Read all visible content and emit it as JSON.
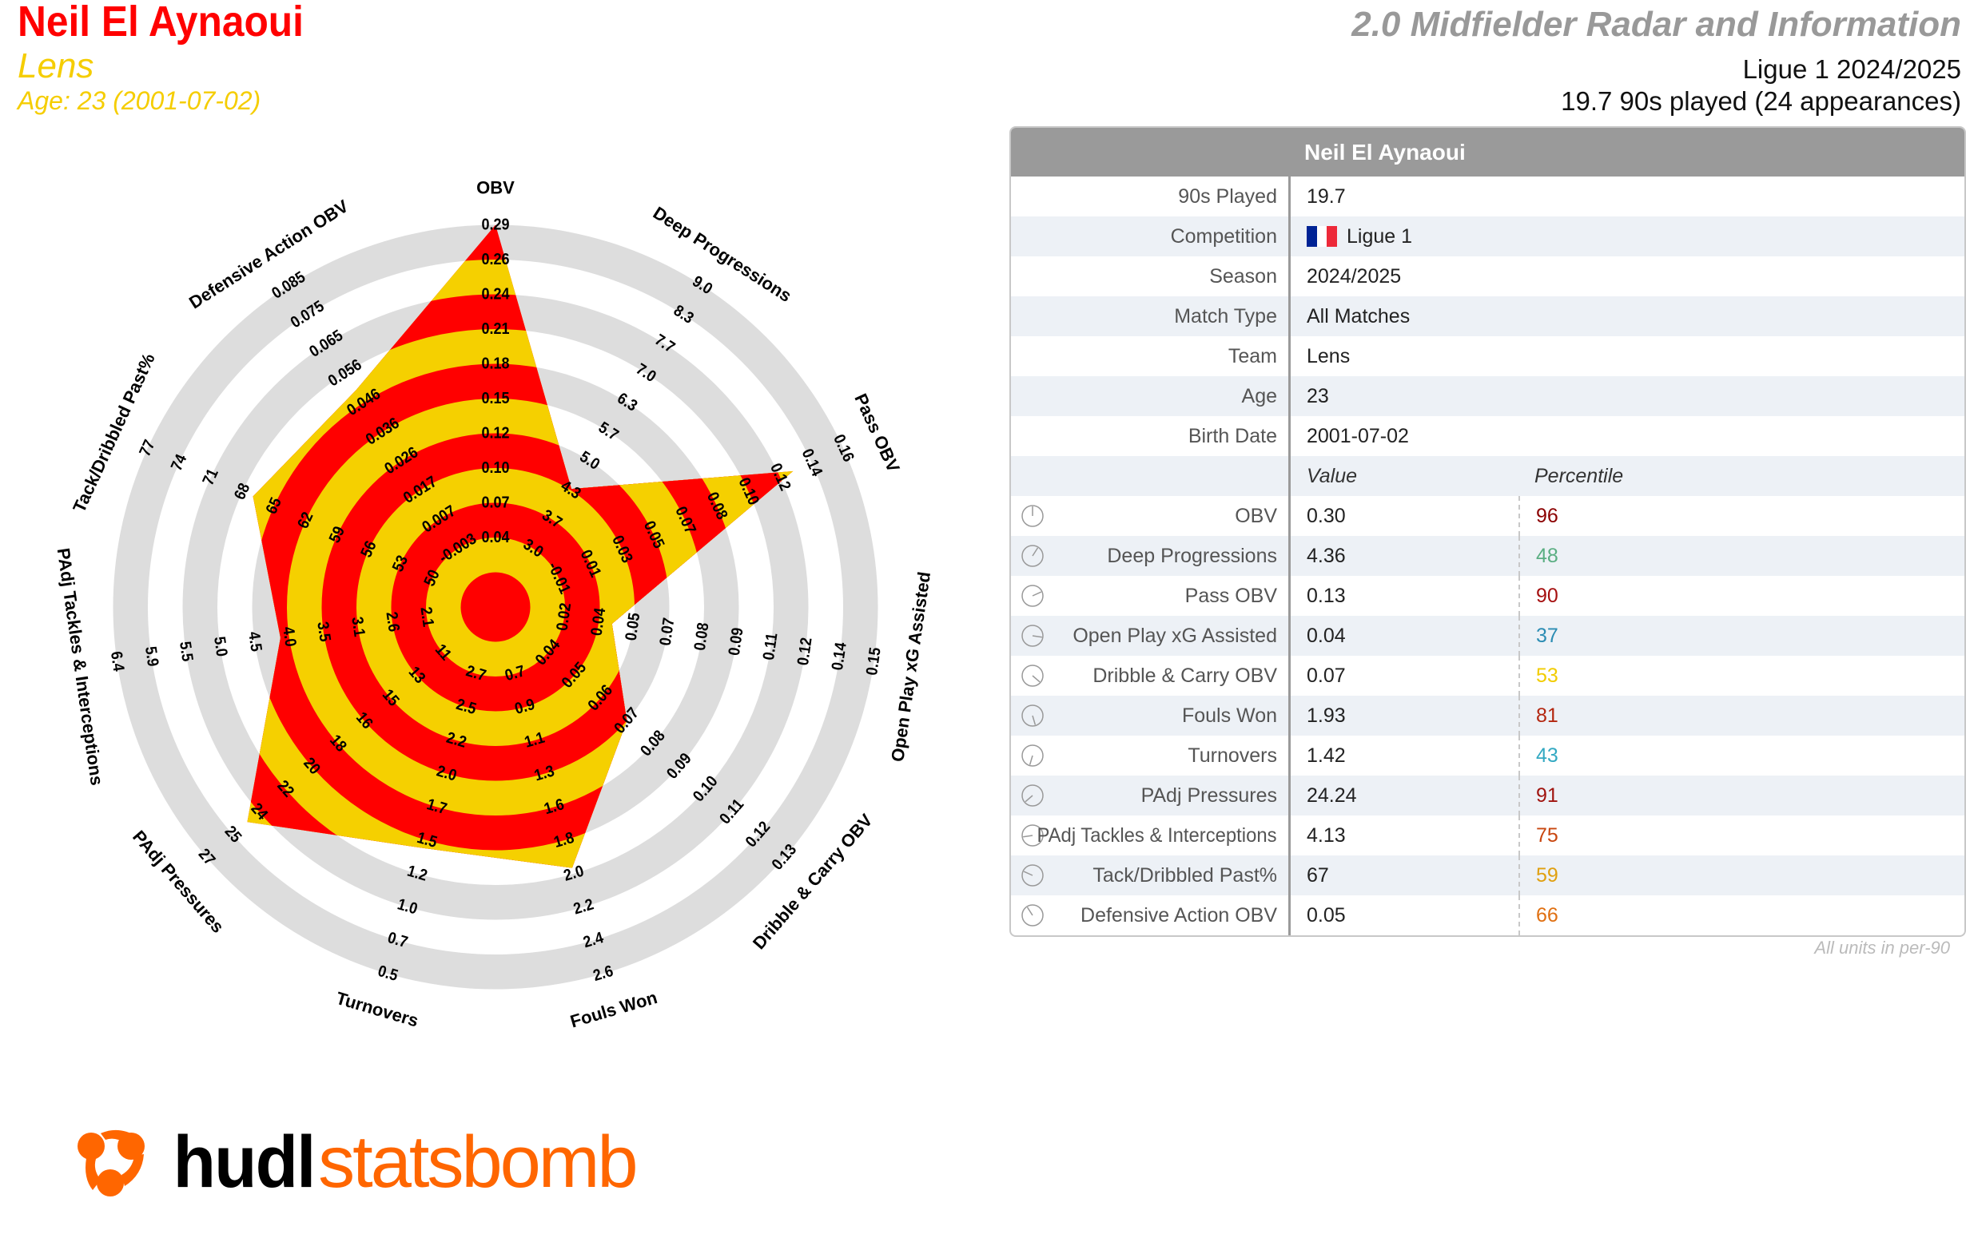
{
  "header": {
    "player_name": "Neil El Aynaoui",
    "team": "Lens",
    "age_line": "Age: 23 (2001-07-02)",
    "report_title": "2.0 Midfielder Radar and Information",
    "competition_season": "Ligue 1 2024/2025",
    "played_line": "19.7 90s played (24 appearances)"
  },
  "colors": {
    "red": "#ff0000",
    "yellow": "#f5d000",
    "ring_gray": "#dddddd",
    "brand_orange": "#ff6600"
  },
  "chart_data": {
    "type": "radar",
    "title": "2.0 Midfielder Radar",
    "axes": [
      {
        "name": "OBV",
        "ticks": [
          "0.04",
          "0.07",
          "0.10",
          "0.12",
          "0.15",
          "0.18",
          "0.21",
          "0.24",
          "0.26",
          "0.29"
        ],
        "min": 0.04,
        "max": 0.29,
        "value": 0.3
      },
      {
        "name": "Deep Progressions",
        "ticks": [
          "3.0",
          "3.7",
          "4.3",
          "5.0",
          "5.7",
          "6.3",
          "7.0",
          "7.7",
          "8.3",
          "9.0"
        ],
        "min": 3.0,
        "max": 9.0,
        "value": 4.36
      },
      {
        "name": "Pass OBV",
        "ticks": [
          "-0.01",
          "0.01",
          "0.03",
          "0.05",
          "0.07",
          "0.08",
          "0.10",
          "0.12",
          "0.14",
          "0.16"
        ],
        "min": -0.01,
        "max": 0.16,
        "value": 0.13
      },
      {
        "name": "Open Play xG Assisted",
        "ticks": [
          "0.02",
          "0.04",
          "0.05",
          "0.07",
          "0.08",
          "0.09",
          "0.11",
          "0.12",
          "0.14",
          "0.15"
        ],
        "min": 0.02,
        "max": 0.15,
        "value": 0.04
      },
      {
        "name": "Dribble & Carry OBV",
        "ticks": [
          "0.04",
          "0.05",
          "0.06",
          "0.07",
          "0.08",
          "0.09",
          "0.10",
          "0.11",
          "0.12",
          "0.13"
        ],
        "min": 0.04,
        "max": 0.13,
        "value": 0.07
      },
      {
        "name": "Fouls Won",
        "ticks": [
          "0.7",
          "0.9",
          "1.1",
          "1.3",
          "1.6",
          "1.8",
          "2.0",
          "2.2",
          "2.4",
          "2.6"
        ],
        "min": 0.7,
        "max": 2.6,
        "value": 1.93
      },
      {
        "name": "Turnovers",
        "ticks": [
          "2.7",
          "2.5",
          "2.2",
          "2.0",
          "1.7",
          "1.5",
          "1.2",
          "1.0",
          "0.7",
          "0.5"
        ],
        "min": 2.7,
        "max": 0.5,
        "value": 1.42
      },
      {
        "name": "PAdj Pressures",
        "ticks": [
          "11",
          "13",
          "15",
          "16",
          "18",
          "20",
          "22",
          "24",
          "25",
          "27"
        ],
        "min": 11,
        "max": 27,
        "value": 24.24
      },
      {
        "name": "PAdj Tackles & Interceptions",
        "ticks": [
          "2.1",
          "2.6",
          "3.1",
          "3.5",
          "4.0",
          "4.5",
          "5.0",
          "5.5",
          "5.9",
          "6.4"
        ],
        "min": 2.1,
        "max": 6.4,
        "value": 4.13
      },
      {
        "name": "Tack/Dribbled Past%",
        "ticks": [
          "50",
          "53",
          "56",
          "59",
          "62",
          "65",
          "68",
          "71",
          "74",
          "77"
        ],
        "min": 50,
        "max": 77,
        "value": 67
      },
      {
        "name": "Defensive Action OBV",
        "ticks": [
          "-0.003",
          "0.007",
          "0.017",
          "0.026",
          "0.036",
          "0.046",
          "0.056",
          "0.065",
          "0.075",
          "0.085"
        ],
        "min": -0.003,
        "max": 0.085,
        "value": 0.05
      }
    ]
  },
  "table": {
    "title": "Neil El Aynaoui",
    "info": [
      {
        "label": "90s Played",
        "value": "19.7"
      },
      {
        "label": "Competition",
        "value": "Ligue 1",
        "flag": "france"
      },
      {
        "label": "Season",
        "value": "2024/2025"
      },
      {
        "label": "Match Type",
        "value": "All Matches"
      },
      {
        "label": "Team",
        "value": "Lens"
      },
      {
        "label": "Age",
        "value": "23"
      },
      {
        "label": "Birth Date",
        "value": "2001-07-02"
      }
    ],
    "value_header": "Value",
    "percentile_header": "Percentile",
    "metrics": [
      {
        "label": "OBV",
        "value": "0.30",
        "percentile": "96",
        "color": "#8b0000"
      },
      {
        "label": "Deep Progressions",
        "value": "4.36",
        "percentile": "48",
        "color": "#5aae82"
      },
      {
        "label": "Pass OBV",
        "value": "0.13",
        "percentile": "90",
        "color": "#a50f0f"
      },
      {
        "label": "Open Play xG Assisted",
        "value": "0.04",
        "percentile": "37",
        "color": "#2b8cb3"
      },
      {
        "label": "Dribble & Carry OBV",
        "value": "0.07",
        "percentile": "53",
        "color": "#f2cc00"
      },
      {
        "label": "Fouls Won",
        "value": "1.93",
        "percentile": "81",
        "color": "#b3260f"
      },
      {
        "label": "Turnovers",
        "value": "1.42",
        "percentile": "43",
        "color": "#33a9c2"
      },
      {
        "label": "PAdj Pressures",
        "value": "24.24",
        "percentile": "91",
        "color": "#a0140f"
      },
      {
        "label": "PAdj Tackles & Interceptions",
        "value": "4.13",
        "percentile": "75",
        "color": "#c8460f"
      },
      {
        "label": "Tack/Dribbled Past%",
        "value": "67",
        "percentile": "59",
        "color": "#e0a010"
      },
      {
        "label": "Defensive Action OBV",
        "value": "0.05",
        "percentile": "66",
        "color": "#e07012"
      }
    ],
    "units_note": "All units in per-90"
  },
  "logo": {
    "part1": "hudl",
    "part2": "statsbomb"
  }
}
